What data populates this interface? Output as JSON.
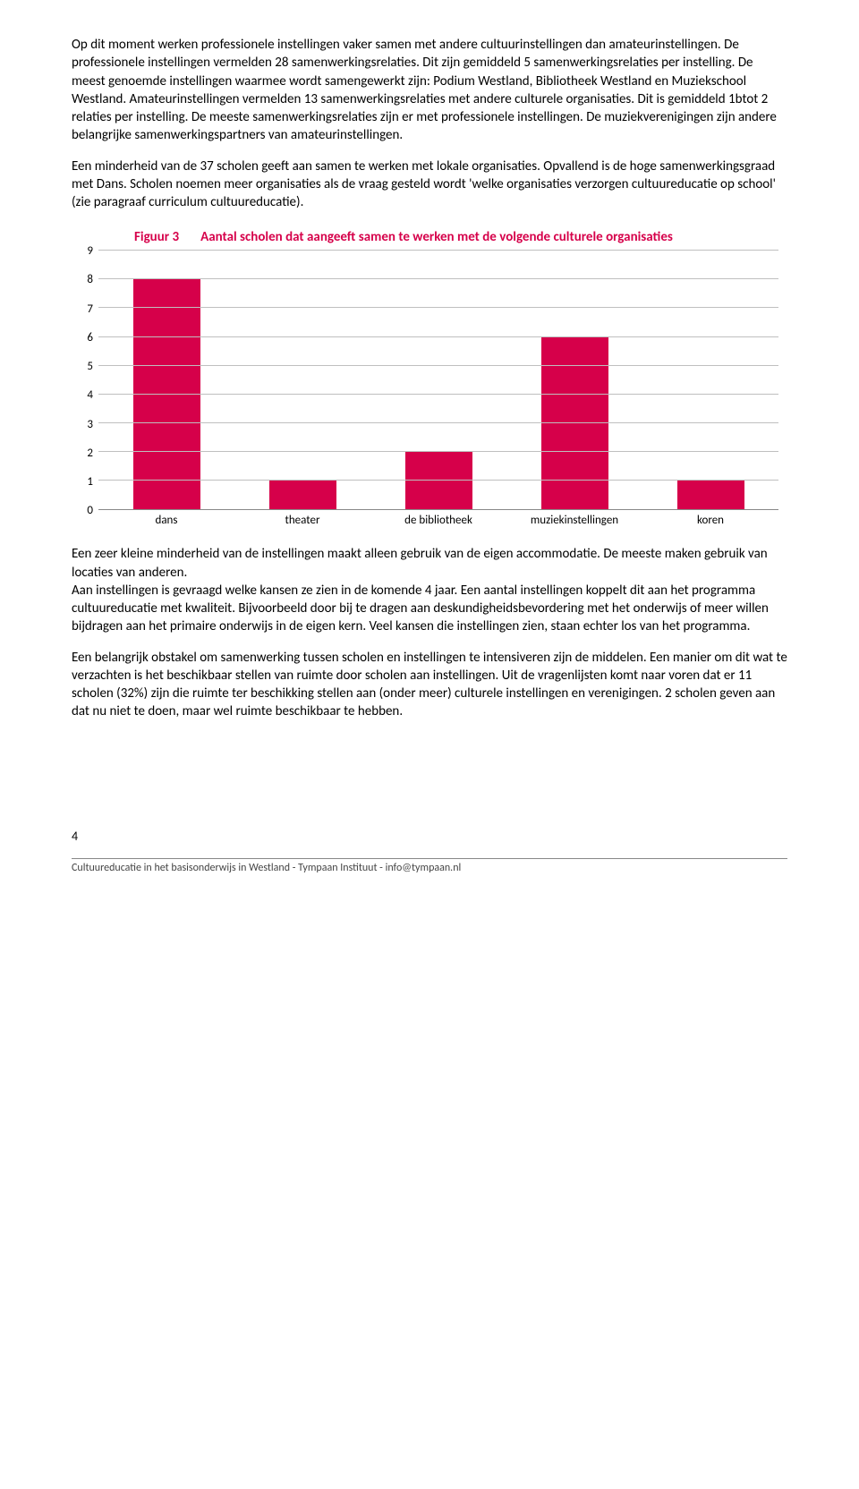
{
  "para1": "Op dit moment werken professionele instellingen vaker samen met andere cultuurinstellingen dan amateurinstellingen. De professionele instellingen vermelden 28 samenwerkingsrelaties. Dit zijn gemiddeld 5 samenwerkingsrelaties per instelling. De meest genoemde instellingen waarmee wordt samengewerkt zijn: Podium Westland, Bibliotheek Westland en Muziekschool Westland. Amateurinstellingen vermelden 13 samenwerkingsrelaties met andere culturele organisaties. Dit is gemiddeld 1btot 2 relaties per instelling. De meeste samenwerkingsrelaties zijn er met professionele instellingen. De muziekverenigingen zijn andere belangrijke samenwerkingspartners van amateurinstellingen.",
  "para2": "Een minderheid van de 37 scholen geeft aan samen te werken met lokale organisaties. Opvallend is de hoge samenwerkingsgraad met Dans. Scholen noemen meer organisaties als de vraag gesteld wordt 'welke organisaties verzorgen cultuureducatie op school' (zie paragraaf curriculum cultuureducatie).",
  "figure": {
    "label": "Figuur 3",
    "title": "Aantal scholen dat aangeeft samen te werken met de volgende culturele organisaties",
    "label_color": "#d6004a",
    "type": "bar",
    "categories": [
      "dans",
      "theater",
      "de bibliotheek",
      "muziekinstellingen",
      "koren"
    ],
    "values": [
      8,
      1,
      2,
      6,
      1
    ],
    "ymax": 9,
    "ytick_step": 1,
    "bar_color": "#d6004a",
    "grid_color": "#bfbfbf",
    "axis_font_size": 13
  },
  "para3": "Een zeer kleine minderheid van de instellingen maakt alleen gebruik van de eigen accommodatie. De meeste maken gebruik van locaties van anderen.",
  "para3b": "Aan instellingen is gevraagd welke kansen ze zien in de komende 4 jaar. Een aantal instellingen koppelt dit aan het programma cultuureducatie met kwaliteit. Bijvoorbeeld door bij te dragen aan deskundigheidsbevordering met het onderwijs of meer willen bijdragen aan het primaire onderwijs in de eigen kern. Veel kansen die instellingen zien, staan echter los van het programma.",
  "para4": "Een belangrijk obstakel om samenwerking tussen scholen en instellingen te intensiveren zijn de middelen. Een manier om dit wat te verzachten is het beschikbaar stellen van ruimte door scholen aan instellingen. Uit de vragenlijsten komt naar voren dat er 11 scholen (32%) zijn die ruimte ter beschikking stellen aan (onder meer) culturele instellingen en verenigingen. 2 scholen geven aan dat nu niet te doen, maar wel ruimte beschikbaar te hebben.",
  "page_number": "4",
  "footer_text": "Cultuureducatie in het basisonderwijs in Westland - Tympaan Instituut - info@tympaan.nl"
}
